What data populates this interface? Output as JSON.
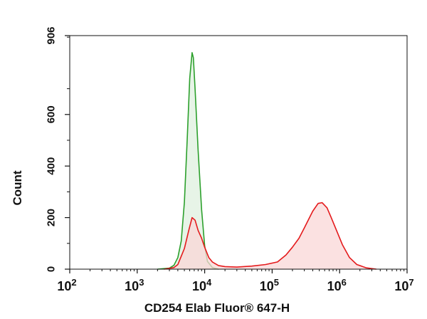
{
  "chart_data": {
    "type": "area",
    "title": "",
    "xlabel": "CD254 Elab Fluor® 647-H",
    "ylabel": "Count",
    "x_scale": "log",
    "xlim": [
      100,
      10000000
    ],
    "ylim": [
      0,
      906
    ],
    "x_ticks": [
      {
        "value": 100,
        "base": "10",
        "exp": "2"
      },
      {
        "value": 1000,
        "base": "10",
        "exp": "3"
      },
      {
        "value": 10000,
        "base": "10",
        "exp": "4"
      },
      {
        "value": 100000,
        "base": "10",
        "exp": "5"
      },
      {
        "value": 1000000,
        "base": "10",
        "exp": "6"
      },
      {
        "value": 10000000,
        "base": "10",
        "exp": "7"
      }
    ],
    "y_ticks": [
      {
        "value": 0,
        "label": "0"
      },
      {
        "value": 200,
        "label": "200"
      },
      {
        "value": 400,
        "label": "400"
      },
      {
        "value": 600,
        "label": "600"
      },
      {
        "value": 906,
        "label": "906"
      }
    ],
    "series": [
      {
        "color": "#2ca02c",
        "fill": "#dff0df",
        "points": [
          [
            2000,
            0
          ],
          [
            3000,
            4
          ],
          [
            3500,
            15
          ],
          [
            4000,
            45
          ],
          [
            4500,
            110
          ],
          [
            5000,
            260
          ],
          [
            5500,
            500
          ],
          [
            6000,
            740
          ],
          [
            6500,
            840
          ],
          [
            6800,
            820
          ],
          [
            7200,
            700
          ],
          [
            8000,
            460
          ],
          [
            9000,
            230
          ],
          [
            10000,
            90
          ],
          [
            11000,
            30
          ],
          [
            13000,
            6
          ],
          [
            16000,
            0
          ]
        ]
      },
      {
        "color": "#e41a1c",
        "fill": "#f9d7d7",
        "points": [
          [
            2500,
            0
          ],
          [
            3500,
            6
          ],
          [
            4000,
            18
          ],
          [
            5000,
            80
          ],
          [
            5800,
            150
          ],
          [
            6500,
            200
          ],
          [
            7200,
            190
          ],
          [
            8000,
            150
          ],
          [
            9000,
            120
          ],
          [
            10000,
            85
          ],
          [
            11500,
            45
          ],
          [
            13000,
            28
          ],
          [
            16000,
            14
          ],
          [
            20000,
            10
          ],
          [
            30000,
            8
          ],
          [
            50000,
            12
          ],
          [
            80000,
            18
          ],
          [
            120000,
            28
          ],
          [
            160000,
            55
          ],
          [
            200000,
            85
          ],
          [
            250000,
            120
          ],
          [
            300000,
            160
          ],
          [
            350000,
            195
          ],
          [
            400000,
            225
          ],
          [
            480000,
            255
          ],
          [
            550000,
            258
          ],
          [
            650000,
            238
          ],
          [
            750000,
            200
          ],
          [
            900000,
            150
          ],
          [
            1100000,
            95
          ],
          [
            1400000,
            45
          ],
          [
            1800000,
            18
          ],
          [
            2500000,
            5
          ],
          [
            3500000,
            0
          ]
        ]
      }
    ],
    "grid": false
  }
}
